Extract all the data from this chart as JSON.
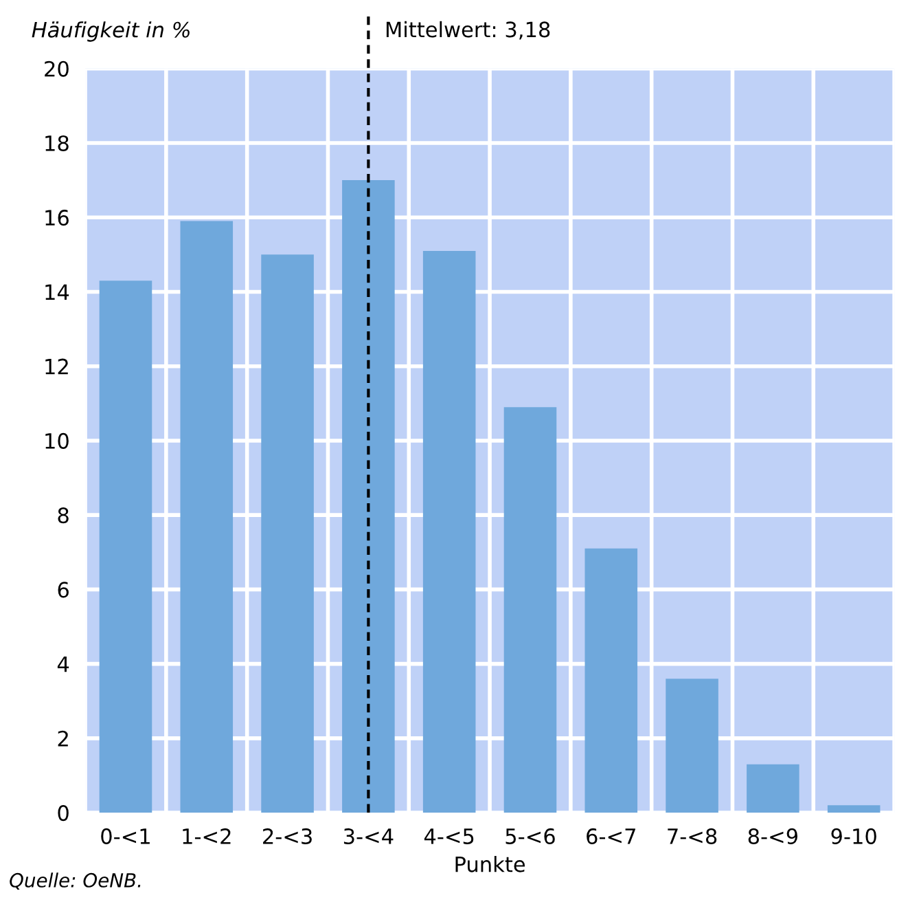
{
  "chart_data": {
    "type": "bar",
    "ylabel": "Häufigkeit in %",
    "xlabel": "Punkte",
    "categories": [
      "0-<1",
      "1-<2",
      "2-<3",
      "3-<4",
      "4-<5",
      "5-<6",
      "6-<7",
      "7-<8",
      "8-<9",
      "9-10"
    ],
    "values": [
      14.3,
      15.9,
      15.0,
      17.0,
      15.1,
      10.9,
      7.1,
      3.6,
      1.3,
      0.2
    ],
    "color": "#6fa8dc",
    "ylim": [
      0,
      20
    ],
    "yticks": [
      0,
      2,
      4,
      6,
      8,
      10,
      12,
      14,
      16,
      18,
      20
    ],
    "grid": true,
    "ref_lines": [
      {
        "axis": "x",
        "value": "3-<4",
        "label": "Mittelwert: 3,18",
        "color": "#000000",
        "line_style": "dashed"
      }
    ],
    "annotations": [
      "Quelle: OeNB."
    ]
  }
}
